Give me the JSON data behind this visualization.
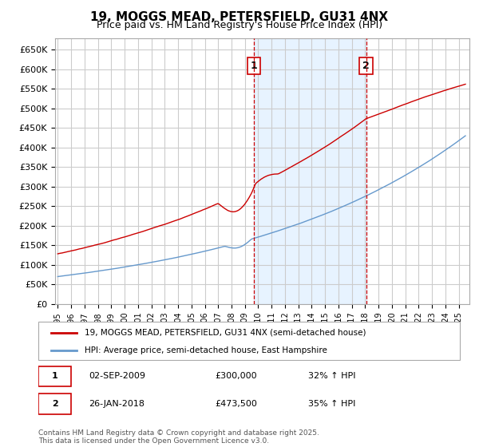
{
  "title": "19, MOGGS MEAD, PETERSFIELD, GU31 4NX",
  "subtitle": "Price paid vs. HM Land Registry's House Price Index (HPI)",
  "ylim": [
    0,
    680000
  ],
  "hpi_color": "#6699cc",
  "price_color": "#cc0000",
  "background_color": "#ffffff",
  "grid_color": "#cccccc",
  "marker1_x": 2009.67,
  "marker2_x": 2018.07,
  "marker1_price": 300000,
  "marker2_price": 473500,
  "shade_color": "#ddeeff",
  "legend_line1": "19, MOGGS MEAD, PETERSFIELD, GU31 4NX (semi-detached house)",
  "legend_line2": "HPI: Average price, semi-detached house, East Hampshire",
  "footnote": "Contains HM Land Registry data © Crown copyright and database right 2025.\nThis data is licensed under the Open Government Licence v3.0.",
  "row1_num": "1",
  "row1_date": "02-SEP-2009",
  "row1_price": "£300,000",
  "row1_hpi": "32% ↑ HPI",
  "row2_num": "2",
  "row2_date": "26-JAN-2018",
  "row2_price": "£473,500",
  "row2_hpi": "35% ↑ HPI"
}
